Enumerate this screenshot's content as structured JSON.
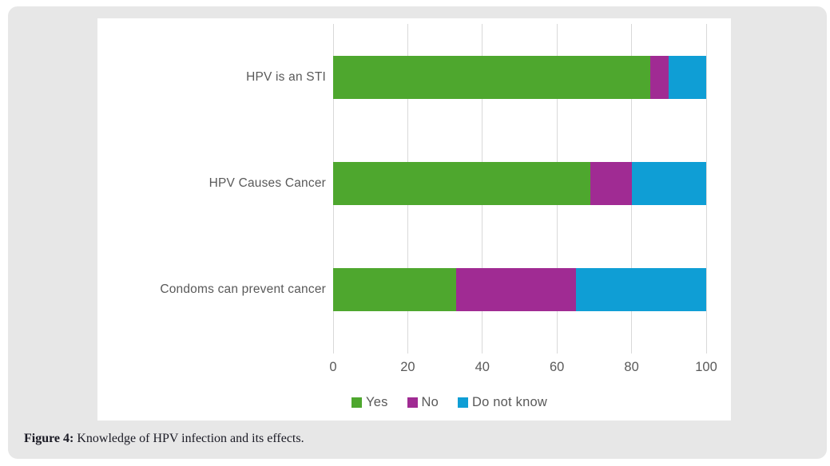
{
  "caption": {
    "prefix": "Figure 4:",
    "text": " Knowledge of HPV infection and its effects."
  },
  "colors": {
    "card_bg": "#E7E7E7",
    "panel_bg": "#FFFFFF",
    "gridline": "#D9D9D9",
    "axis_text": "#595959",
    "caption_text": "#1A1A24",
    "yes_green": "#4EA72E",
    "no_purple": "#A02B93",
    "do_not_know_blue": "#0F9ED5"
  },
  "chart_data": {
    "type": "bar",
    "orientation": "horizontal",
    "stacked": true,
    "title": "",
    "xlabel": "",
    "ylabel": "",
    "categories": [
      "HPV is an STI",
      "HPV Causes Cancer",
      "Condoms can prevent cancer"
    ],
    "series": [
      {
        "name": "Yes",
        "color": "#4EA72E",
        "values": [
          85,
          69,
          33
        ]
      },
      {
        "name": "No",
        "color": "#A02B93",
        "values": [
          5,
          11,
          32
        ]
      },
      {
        "name": "Do not know",
        "color": "#0F9ED5",
        "values": [
          10,
          20,
          35
        ]
      }
    ],
    "xlim": [
      0,
      100
    ],
    "x_ticks": [
      0,
      20,
      40,
      60,
      80,
      100
    ],
    "grid": true,
    "legend_position": "bottom"
  }
}
